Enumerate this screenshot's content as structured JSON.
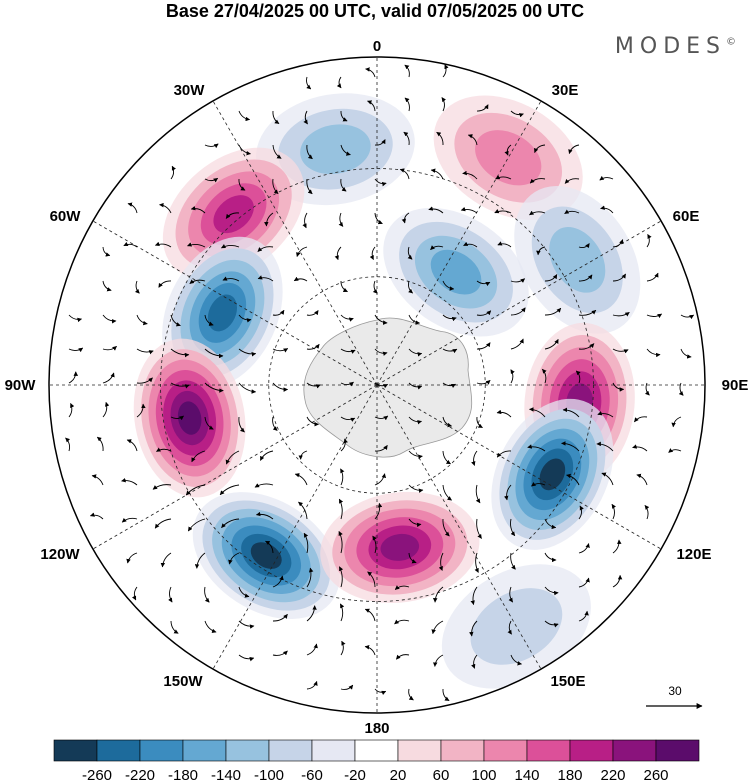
{
  "title": "Base 27/04/2025 00 UTC, valid 07/05/2025 00 UTC",
  "brand": {
    "name": "MODES",
    "mark": "©"
  },
  "longitude_labels": [
    "0",
    "30E",
    "60E",
    "90E",
    "120E",
    "150E",
    "180",
    "150W",
    "120W",
    "90W",
    "60W",
    "30W"
  ],
  "vector_scale": {
    "label": "30"
  },
  "colorbar": {
    "colors": [
      "#143a57",
      "#1d6b9c",
      "#3b8cbf",
      "#64a8d2",
      "#97c2df",
      "#c6d4e8",
      "#e6e8f3",
      "#ffffff",
      "#f7dbe0",
      "#f2b4c5",
      "#ec86ad",
      "#dc5099",
      "#b81f86",
      "#8a137c",
      "#5b0c6b"
    ],
    "tick_labels": [
      "-260",
      "-220",
      "-180",
      "-140",
      "-100",
      "-60",
      "-20",
      "20",
      "60",
      "100",
      "140",
      "180",
      "220",
      "260"
    ]
  },
  "anomaly_centers": [
    {
      "lon": -10,
      "r": 0.73,
      "v": -110
    },
    {
      "lon": 30,
      "r": 0.8,
      "v": 100
    },
    {
      "lon": 35,
      "r": 0.42,
      "v": -140
    },
    {
      "lon": 58,
      "r": 0.72,
      "v": -130
    },
    {
      "lon": -40,
      "r": 0.68,
      "v": 200
    },
    {
      "lon": -65,
      "r": 0.52,
      "v": -250
    },
    {
      "lon": 95,
      "r": 0.62,
      "v": 240
    },
    {
      "lon": -100,
      "r": 0.58,
      "v": 270
    },
    {
      "lon": 117,
      "r": 0.6,
      "v": -270
    },
    {
      "lon": -147,
      "r": 0.62,
      "v": -270
    },
    {
      "lon": 172,
      "r": 0.5,
      "v": 230
    },
    {
      "lon": 150,
      "r": 0.85,
      "v": -90
    }
  ]
}
